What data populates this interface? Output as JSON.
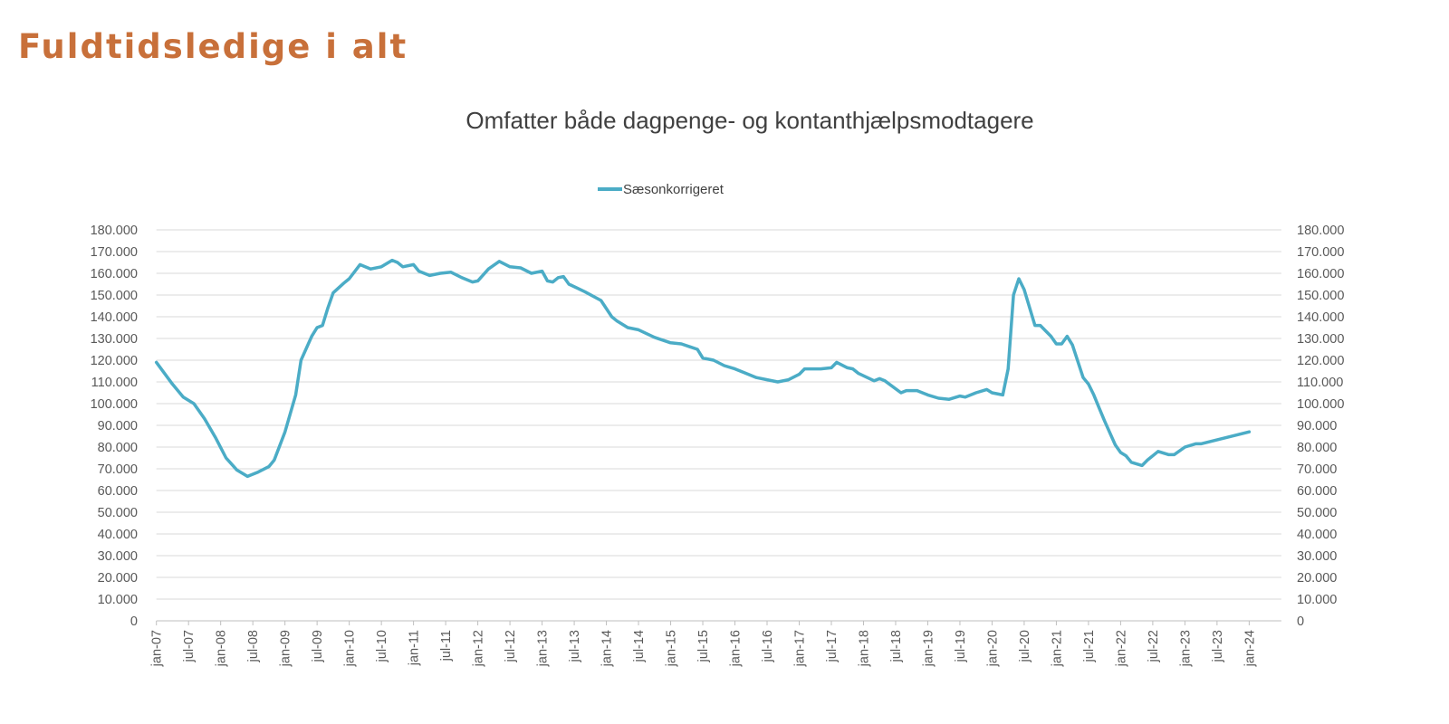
{
  "header": {
    "title": "Fuldtidsledige i alt"
  },
  "chart_data": {
    "type": "line",
    "title": "Omfatter både dagpenge- og kontanthjælpsmodtagere",
    "xlabel": "",
    "ylabel": "",
    "ylim": [
      0,
      180000
    ],
    "y_ticks": [
      "0",
      "10.000",
      "20.000",
      "30.000",
      "40.000",
      "50.000",
      "60.000",
      "70.000",
      "80.000",
      "90.000",
      "100.000",
      "110.000",
      "120.000",
      "130.000",
      "140.000",
      "150.000",
      "160.000",
      "170.000",
      "180.000"
    ],
    "y_axis_right": true,
    "x_range": [
      "2007-01",
      "2024-07"
    ],
    "x_ticks": [
      "jan-07",
      "jul-07",
      "jan-08",
      "jul-08",
      "jan-09",
      "jul-09",
      "jan-10",
      "jul-10",
      "jan-11",
      "jul-11",
      "jan-12",
      "jul-12",
      "jan-13",
      "jul-13",
      "jan-14",
      "jul-14",
      "jan-15",
      "jul-15",
      "jan-16",
      "jul-16",
      "jan-17",
      "jul-17",
      "jan-18",
      "jul-18",
      "jan-19",
      "jul-19",
      "jan-20",
      "jul-20",
      "jan-21",
      "jul-21",
      "jan-22",
      "jul-22",
      "jan-23",
      "jul-23",
      "jan-24"
    ],
    "grid": true,
    "legend_position": "top",
    "series": [
      {
        "name": "Sæsonkorrigeret",
        "color": "#4bacc6",
        "points": [
          [
            "2007-01",
            119000
          ],
          [
            "2007-04",
            109000
          ],
          [
            "2007-06",
            103000
          ],
          [
            "2007-08",
            100000
          ],
          [
            "2007-10",
            93000
          ],
          [
            "2007-12",
            84500
          ],
          [
            "2008-02",
            75000
          ],
          [
            "2008-04",
            69500
          ],
          [
            "2008-06",
            66500
          ],
          [
            "2008-08",
            68500
          ],
          [
            "2008-10",
            71000
          ],
          [
            "2008-11",
            74000
          ],
          [
            "2009-01",
            87000
          ],
          [
            "2009-03",
            104000
          ],
          [
            "2009-04",
            120000
          ],
          [
            "2009-06",
            131000
          ],
          [
            "2009-07",
            135000
          ],
          [
            "2009-08",
            136000
          ],
          [
            "2009-09",
            144000
          ],
          [
            "2009-10",
            151000
          ],
          [
            "2009-12",
            155500
          ],
          [
            "2010-01",
            157500
          ],
          [
            "2010-03",
            164000
          ],
          [
            "2010-05",
            162000
          ],
          [
            "2010-07",
            163000
          ],
          [
            "2010-09",
            166000
          ],
          [
            "2010-10",
            165000
          ],
          [
            "2010-11",
            163000
          ],
          [
            "2011-01",
            164000
          ],
          [
            "2011-02",
            161000
          ],
          [
            "2011-04",
            159000
          ],
          [
            "2011-06",
            160000
          ],
          [
            "2011-08",
            160500
          ],
          [
            "2011-10",
            158000
          ],
          [
            "2011-12",
            156000
          ],
          [
            "2012-01",
            156500
          ],
          [
            "2012-03",
            162000
          ],
          [
            "2012-05",
            165500
          ],
          [
            "2012-07",
            163000
          ],
          [
            "2012-09",
            162500
          ],
          [
            "2012-11",
            160000
          ],
          [
            "2013-01",
            161000
          ],
          [
            "2013-02",
            156500
          ],
          [
            "2013-03",
            156000
          ],
          [
            "2013-04",
            158000
          ],
          [
            "2013-05",
            158500
          ],
          [
            "2013-06",
            155000
          ],
          [
            "2013-09",
            151500
          ],
          [
            "2013-12",
            147500
          ],
          [
            "2014-02",
            140000
          ],
          [
            "2014-03",
            138000
          ],
          [
            "2014-05",
            135000
          ],
          [
            "2014-07",
            134000
          ],
          [
            "2014-10",
            130500
          ],
          [
            "2015-01",
            128000
          ],
          [
            "2015-03",
            127500
          ],
          [
            "2015-06",
            125000
          ],
          [
            "2015-07",
            121000
          ],
          [
            "2015-09",
            120000
          ],
          [
            "2015-11",
            117500
          ],
          [
            "2016-01",
            116000
          ],
          [
            "2016-03",
            114000
          ],
          [
            "2016-05",
            112000
          ],
          [
            "2016-07",
            111000
          ],
          [
            "2016-09",
            110000
          ],
          [
            "2016-11",
            111000
          ],
          [
            "2017-01",
            113500
          ],
          [
            "2017-02",
            116000
          ],
          [
            "2017-05",
            116000
          ],
          [
            "2017-07",
            116500
          ],
          [
            "2017-08",
            119000
          ],
          [
            "2017-10",
            116500
          ],
          [
            "2017-11",
            116000
          ],
          [
            "2017-12",
            114000
          ],
          [
            "2018-03",
            110500
          ],
          [
            "2018-04",
            111500
          ],
          [
            "2018-05",
            110500
          ],
          [
            "2018-08",
            105000
          ],
          [
            "2018-09",
            106000
          ],
          [
            "2018-11",
            106000
          ],
          [
            "2019-01",
            104000
          ],
          [
            "2019-03",
            102500
          ],
          [
            "2019-05",
            102000
          ],
          [
            "2019-07",
            103500
          ],
          [
            "2019-08",
            103000
          ],
          [
            "2019-10",
            105000
          ],
          [
            "2019-12",
            106500
          ],
          [
            "2020-01",
            105000
          ],
          [
            "2020-03",
            104000
          ],
          [
            "2020-04",
            116000
          ],
          [
            "2020-05",
            150000
          ],
          [
            "2020-06",
            157500
          ],
          [
            "2020-07",
            152500
          ],
          [
            "2020-09",
            136000
          ],
          [
            "2020-10",
            136000
          ],
          [
            "2020-12",
            131000
          ],
          [
            "2021-01",
            127500
          ],
          [
            "2021-02",
            127500
          ],
          [
            "2021-03",
            131000
          ],
          [
            "2021-04",
            127000
          ],
          [
            "2021-06",
            112000
          ],
          [
            "2021-07",
            109000
          ],
          [
            "2021-08",
            104000
          ],
          [
            "2021-09",
            98000
          ],
          [
            "2021-10",
            92000
          ],
          [
            "2021-12",
            81000
          ],
          [
            "2022-01",
            77500
          ],
          [
            "2022-02",
            76000
          ],
          [
            "2022-03",
            73000
          ],
          [
            "2022-05",
            71500
          ],
          [
            "2022-06",
            74000
          ],
          [
            "2022-08",
            78000
          ],
          [
            "2022-10",
            76500
          ],
          [
            "2022-11",
            76500
          ],
          [
            "2023-01",
            80000
          ],
          [
            "2023-03",
            81500
          ],
          [
            "2023-04",
            81500
          ],
          [
            "2024-01",
            87000
          ]
        ]
      }
    ]
  }
}
